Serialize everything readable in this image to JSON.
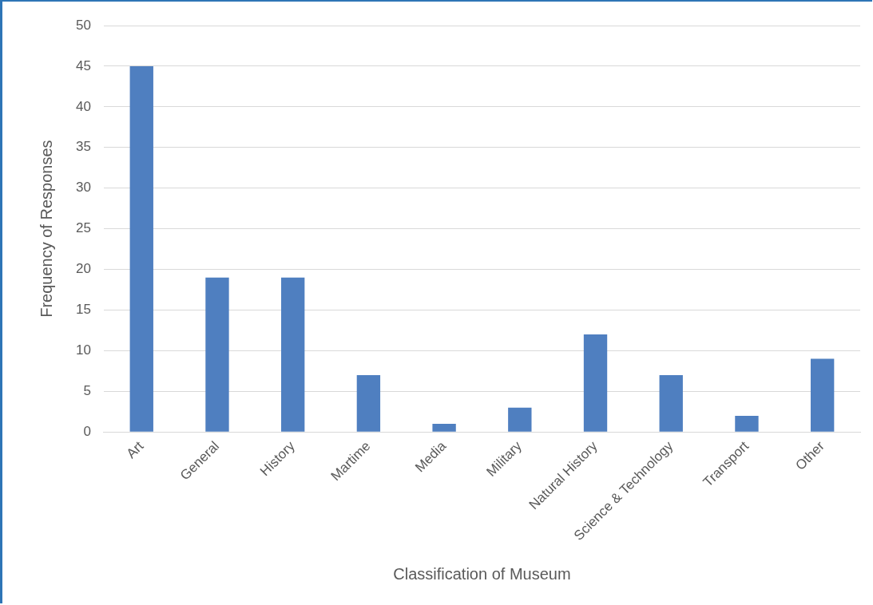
{
  "chart_data": {
    "type": "bar",
    "xlabel": "Classification of Museum",
    "ylabel": "Frequency of Responses",
    "categories": [
      "Art",
      "General",
      "History",
      "Martime",
      "Media",
      "Military",
      "Natural History",
      "Science & Technology",
      "Transport",
      "Other"
    ],
    "values": [
      45,
      19,
      19,
      7,
      1,
      3,
      12,
      7,
      2,
      9
    ],
    "color": "#4f7fc0",
    "ylim": [
      0,
      50
    ],
    "yticks": [
      0,
      5,
      10,
      15,
      20,
      25,
      30,
      35,
      40,
      45,
      50
    ],
    "grid": "y",
    "legend": false
  }
}
